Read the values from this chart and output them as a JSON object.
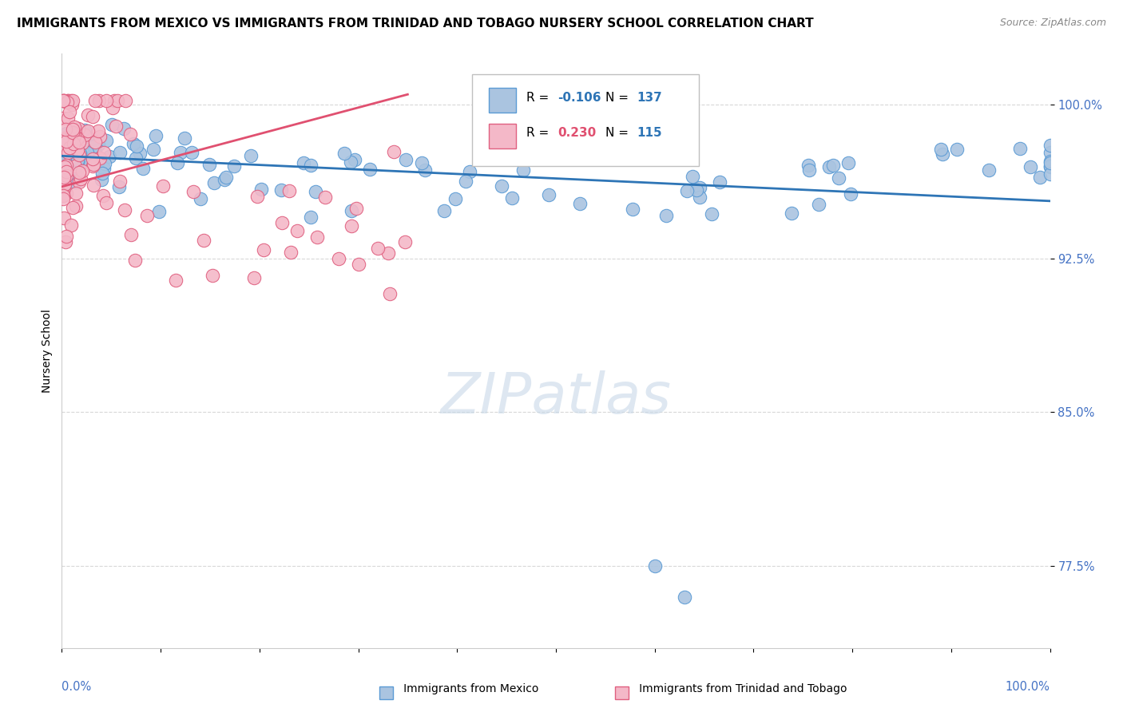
{
  "title": "IMMIGRANTS FROM MEXICO VS IMMIGRANTS FROM TRINIDAD AND TOBAGO NURSERY SCHOOL CORRELATION CHART",
  "source": "Source: ZipAtlas.com",
  "ylabel": "Nursery School",
  "ytick_labels": [
    "77.5%",
    "85.0%",
    "92.5%",
    "100.0%"
  ],
  "ytick_values": [
    0.775,
    0.85,
    0.925,
    1.0
  ],
  "xlim": [
    0.0,
    1.0
  ],
  "ylim": [
    0.735,
    1.025
  ],
  "legend_blue_R": "-0.106",
  "legend_blue_N": "137",
  "legend_pink_R": "0.230",
  "legend_pink_N": "115",
  "blue_color": "#aac4e0",
  "blue_edge_color": "#5b9bd5",
  "blue_line_color": "#2e75b6",
  "pink_color": "#f4b8c8",
  "pink_edge_color": "#e06080",
  "pink_line_color": "#e05070",
  "watermark_color": "#c8d8e8",
  "background_color": "#ffffff",
  "grid_color": "#d8d8d8",
  "title_fontsize": 11,
  "source_fontsize": 9,
  "tick_color": "#4472c4",
  "blue_trend_x0": 0.0,
  "blue_trend_x1": 1.0,
  "blue_trend_y0": 0.975,
  "blue_trend_y1": 0.953,
  "pink_trend_x0": 0.0,
  "pink_trend_x1": 0.35,
  "pink_trend_y0": 0.96,
  "pink_trend_y1": 1.005
}
